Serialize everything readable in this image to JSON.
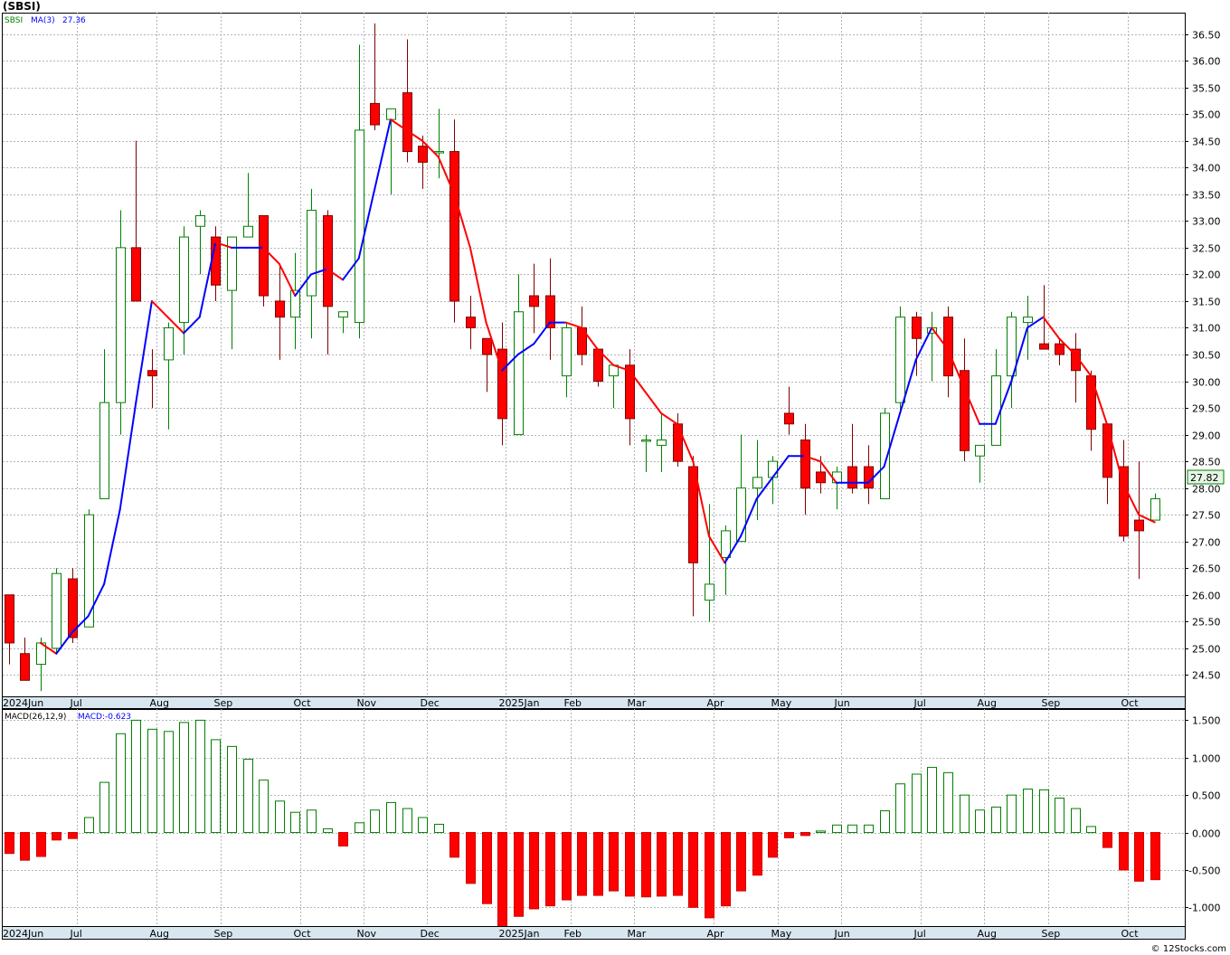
{
  "header": {
    "title": "(SBSI)"
  },
  "credit": "© 12Stocks.com",
  "chart_data": [
    {
      "type": "candlestick",
      "symbol": "SBSI",
      "legend": {
        "symbol": "SBSI",
        "ma_label": "MA(3)",
        "ma_value": "27.36"
      },
      "last_price_label": "27.82",
      "ylim": [
        24.1,
        36.9
      ],
      "y_ticks": [
        "24.50",
        "25.00",
        "25.50",
        "26.00",
        "26.50",
        "27.00",
        "27.50",
        "28.00",
        "28.50",
        "29.00",
        "29.50",
        "30.00",
        "30.50",
        "31.00",
        "31.50",
        "32.00",
        "32.50",
        "33.00",
        "33.50",
        "34.00",
        "34.50",
        "35.00",
        "35.50",
        "36.00",
        "36.50"
      ],
      "x_ticks": [
        {
          "label": "2024Jun",
          "idx": 0
        },
        {
          "label": "Jul",
          "idx": 4.3
        },
        {
          "label": "Aug",
          "idx": 9.3
        },
        {
          "label": "Sep",
          "idx": 13.3
        },
        {
          "label": "Oct",
          "idx": 18.3
        },
        {
          "label": "Nov",
          "idx": 22.3
        },
        {
          "label": "Dec",
          "idx": 26.3
        },
        {
          "label": "2025Jan",
          "idx": 31.2
        },
        {
          "label": "Feb",
          "idx": 35.3
        },
        {
          "label": "Mar",
          "idx": 39.3
        },
        {
          "label": "Apr",
          "idx": 44.3
        },
        {
          "label": "May",
          "idx": 48.3
        },
        {
          "label": "Jun",
          "idx": 52.3
        },
        {
          "label": "Jul",
          "idx": 57.3
        },
        {
          "label": "Aug",
          "idx": 61.3
        },
        {
          "label": "Sep",
          "idx": 65.3
        },
        {
          "label": "Oct",
          "idx": 70.3
        }
      ],
      "candles": [
        [
          26.0,
          26.0,
          24.7,
          25.1
        ],
        [
          24.9,
          25.2,
          24.4,
          24.4
        ],
        [
          24.7,
          25.2,
          24.2,
          25.1
        ],
        [
          25.0,
          26.5,
          24.9,
          26.4
        ],
        [
          26.3,
          26.5,
          25.1,
          25.2
        ],
        [
          25.4,
          27.6,
          25.4,
          27.5
        ],
        [
          27.8,
          30.6,
          27.8,
          29.6
        ],
        [
          29.6,
          33.2,
          29.0,
          32.5
        ],
        [
          32.5,
          34.5,
          31.5,
          31.5
        ],
        [
          30.2,
          30.6,
          29.5,
          30.1
        ],
        [
          30.4,
          31.1,
          29.1,
          31.0
        ],
        [
          31.1,
          32.9,
          30.5,
          32.7
        ],
        [
          32.9,
          33.2,
          32.0,
          33.1
        ],
        [
          32.7,
          32.9,
          31.5,
          31.8
        ],
        [
          31.7,
          32.7,
          30.6,
          32.7
        ],
        [
          32.7,
          33.9,
          32.7,
          32.9
        ],
        [
          33.1,
          33.1,
          31.4,
          31.6
        ],
        [
          31.5,
          32.2,
          30.4,
          31.2
        ],
        [
          31.2,
          32.4,
          30.6,
          31.7
        ],
        [
          31.6,
          33.6,
          30.8,
          33.2
        ],
        [
          33.1,
          33.2,
          30.5,
          31.4
        ],
        [
          31.2,
          31.2,
          30.9,
          31.3
        ],
        [
          31.1,
          36.3,
          30.8,
          34.7
        ],
        [
          35.2,
          36.7,
          34.7,
          34.8
        ],
        [
          34.9,
          35.1,
          33.5,
          35.1
        ],
        [
          35.4,
          36.4,
          34.1,
          34.3
        ],
        [
          34.4,
          34.6,
          33.6,
          34.1
        ],
        [
          34.3,
          35.1,
          33.8,
          34.3
        ],
        [
          34.3,
          34.9,
          31.1,
          31.5
        ],
        [
          31.2,
          31.6,
          30.6,
          31.0
        ],
        [
          30.8,
          30.8,
          29.8,
          30.5
        ],
        [
          30.6,
          31.1,
          28.8,
          29.3
        ],
        [
          29.0,
          32.0,
          29.0,
          31.3
        ],
        [
          31.6,
          32.2,
          30.9,
          31.4
        ],
        [
          31.6,
          32.3,
          30.4,
          31.0
        ],
        [
          30.1,
          31.1,
          29.7,
          31.0
        ],
        [
          31.0,
          31.4,
          30.3,
          30.5
        ],
        [
          30.6,
          30.6,
          29.9,
          30.0
        ],
        [
          30.1,
          30.3,
          29.5,
          30.3
        ],
        [
          30.3,
          30.6,
          28.8,
          29.3
        ],
        [
          28.9,
          29.0,
          28.3,
          28.9
        ],
        [
          28.8,
          29.4,
          28.3,
          28.9
        ],
        [
          29.2,
          29.4,
          28.4,
          28.5
        ],
        [
          28.4,
          28.6,
          25.6,
          26.6
        ],
        [
          25.9,
          27.7,
          25.5,
          26.2
        ],
        [
          26.7,
          27.3,
          26.0,
          27.2
        ],
        [
          27.0,
          29.0,
          27.0,
          28.0
        ],
        [
          28.0,
          28.9,
          27.4,
          28.2
        ],
        [
          28.2,
          28.6,
          27.7,
          28.5
        ],
        [
          29.4,
          29.9,
          29.0,
          29.2
        ],
        [
          28.9,
          29.2,
          27.5,
          28.0
        ],
        [
          28.3,
          28.6,
          27.9,
          28.1
        ],
        [
          28.1,
          28.4,
          27.6,
          28.3
        ],
        [
          28.4,
          29.2,
          27.9,
          28.0
        ],
        [
          28.4,
          28.8,
          27.7,
          28.0
        ],
        [
          27.8,
          29.5,
          27.8,
          29.4
        ],
        [
          29.6,
          31.4,
          29.4,
          31.2
        ],
        [
          31.2,
          31.3,
          30.1,
          30.8
        ],
        [
          30.9,
          31.3,
          30.0,
          31.0
        ],
        [
          31.2,
          31.4,
          29.7,
          30.1
        ],
        [
          30.2,
          30.8,
          28.5,
          28.7
        ],
        [
          28.6,
          28.8,
          28.1,
          28.8
        ],
        [
          28.8,
          30.6,
          28.8,
          30.1
        ],
        [
          30.1,
          31.3,
          29.5,
          31.2
        ],
        [
          31.1,
          31.6,
          30.4,
          31.2
        ],
        [
          30.7,
          31.8,
          30.7,
          30.6
        ],
        [
          30.7,
          30.8,
          30.3,
          30.5
        ],
        [
          30.6,
          30.9,
          29.6,
          30.2
        ],
        [
          30.1,
          30.2,
          28.7,
          29.1
        ],
        [
          29.2,
          29.2,
          27.7,
          28.2
        ],
        [
          28.4,
          28.9,
          27.0,
          27.1
        ],
        [
          27.4,
          28.5,
          26.3,
          27.2
        ],
        [
          27.4,
          27.9,
          27.4,
          27.8
        ]
      ],
      "ma": [
        null,
        null,
        25.1,
        24.9,
        25.3,
        25.6,
        26.2,
        27.6,
        29.6,
        31.5,
        31.2,
        30.9,
        31.2,
        32.6,
        32.5,
        32.5,
        32.5,
        32.2,
        31.6,
        32.0,
        32.1,
        31.9,
        32.3,
        33.6,
        34.9,
        34.7,
        34.5,
        34.2,
        33.5,
        32.5,
        31.1,
        30.2,
        30.5,
        30.7,
        31.1,
        31.1,
        31.0,
        30.6,
        30.3,
        30.2,
        29.8,
        29.4,
        29.2,
        28.5,
        27.1,
        26.6,
        27.1,
        27.8,
        28.2,
        28.6,
        28.6,
        28.5,
        28.1,
        28.1,
        28.1,
        28.4,
        29.4,
        30.4,
        31.0,
        30.6,
        29.9,
        29.2,
        29.2,
        30.0,
        31.0,
        31.2,
        30.8,
        30.5,
        30.1,
        29.2,
        28.1,
        27.5,
        27.36
      ],
      "macd": {
        "label": "MACD(26,12,9)",
        "value_label": "MACD:-0.623",
        "ylim": [
          -1.25,
          1.65
        ],
        "y_ticks": [
          "1.500",
          "1.000",
          "0.500",
          "0.000",
          "-0.500",
          "-1.000"
        ],
        "values": [
          -0.28,
          -0.37,
          -0.32,
          -0.1,
          -0.08,
          0.2,
          0.67,
          1.32,
          1.5,
          1.38,
          1.35,
          1.47,
          1.5,
          1.24,
          1.15,
          0.98,
          0.7,
          0.42,
          0.27,
          0.3,
          0.05,
          -0.18,
          0.13,
          0.3,
          0.4,
          0.32,
          0.2,
          0.11,
          -0.33,
          -0.68,
          -0.95,
          -1.27,
          -1.12,
          -1.02,
          -0.98,
          -0.9,
          -0.84,
          -0.84,
          -0.78,
          -0.85,
          -0.86,
          -0.85,
          -0.84,
          -1.0,
          -1.14,
          -0.98,
          -0.78,
          -0.57,
          -0.33,
          -0.07,
          -0.04,
          0.02,
          0.1,
          0.1,
          0.1,
          0.29,
          0.65,
          0.78,
          0.87,
          0.8,
          0.5,
          0.3,
          0.34,
          0.5,
          0.58,
          0.57,
          0.46,
          0.32,
          0.08,
          -0.2,
          -0.5,
          -0.65,
          -0.63
        ]
      }
    }
  ]
}
